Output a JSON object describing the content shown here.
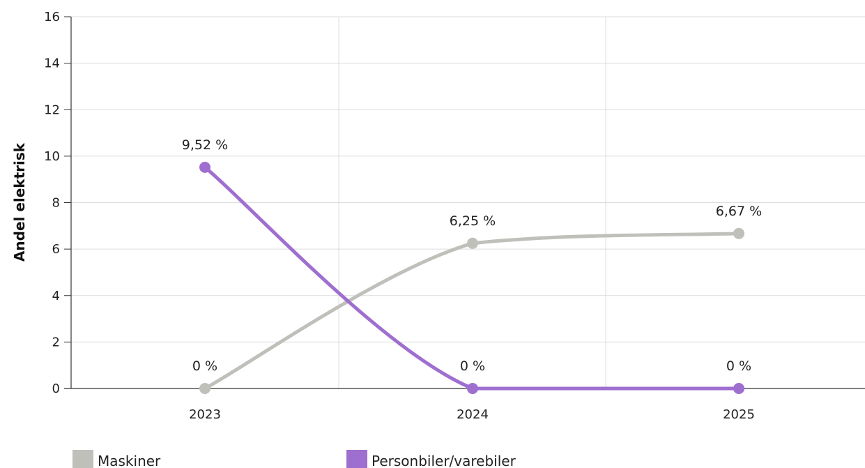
{
  "chart_data": {
    "type": "line",
    "categories": [
      "2023",
      "2024",
      "2025"
    ],
    "series": [
      {
        "name": "Maskiner",
        "values": [
          0,
          6.25,
          6.67
        ],
        "labels": [
          "0 %",
          "6,25 %",
          "6,67 %"
        ],
        "color": "#c0c0bb"
      },
      {
        "name": "Personbiler/varebiler",
        "values": [
          9.52,
          0,
          0
        ],
        "labels": [
          "9,52 %",
          "0 %",
          "0 %"
        ],
        "color": "#9f6fd0"
      }
    ],
    "ylabel": "Andel elektrisk",
    "xlabel": "",
    "ylim": [
      0,
      16
    ],
    "yticks": [
      "0",
      "2",
      "4",
      "6",
      "8",
      "10",
      "12",
      "14",
      "16"
    ],
    "grid": true,
    "legend_position": "bottom"
  }
}
